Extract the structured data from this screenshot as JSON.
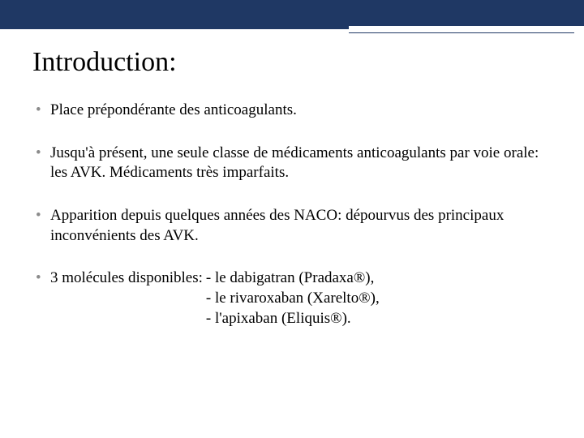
{
  "colors": {
    "bar": "#1f3864",
    "background": "#ffffff",
    "text": "#000000",
    "bullet": "#8b8b8b"
  },
  "typography": {
    "title_fontsize": 34,
    "body_fontsize": 19,
    "reg_fontsize": 13,
    "font_family": "Georgia, serif"
  },
  "title": "Introduction:",
  "bullets": {
    "b1": "Place prépondérante des anticoagulants.",
    "b2": "Jusqu'à présent, une seule classe de médicaments anticoagulants par voie orale: les AVK. Médicaments très imparfaits.",
    "b3": "Apparition depuis quelques années des NACO: dépourvus des principaux inconvénients des AVK.",
    "b4_lead": "3 molécules disponibles: ",
    "b4_items": {
      "i0": "- le dabigatran (Pradaxa®),",
      "i1": "- le rivaroxaban (Xarelto®),",
      "i2": "- l'apixaban (Eliquis®)."
    }
  }
}
